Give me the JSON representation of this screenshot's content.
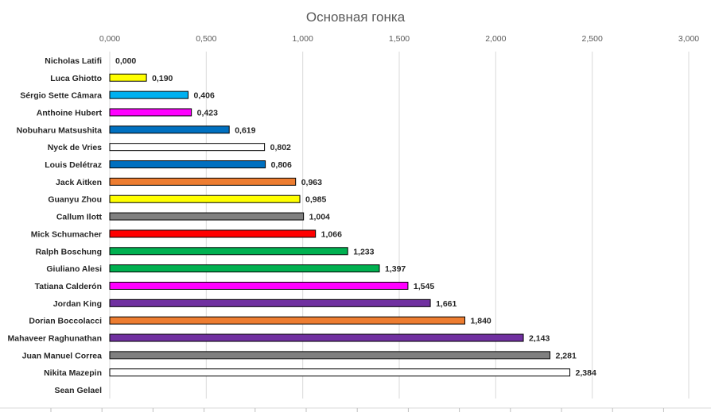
{
  "chart_data": {
    "type": "bar",
    "orientation": "horizontal",
    "title": "Основная гонка",
    "xlim": [
      0,
      3
    ],
    "ticks": [
      "0,000",
      "0,500",
      "1,000",
      "1,500",
      "2,000",
      "2,500",
      "3,000"
    ],
    "grid": true,
    "categories": [
      "Nicholas Latifi",
      "Luca Ghiotto",
      "Sérgio Sette Câmara",
      "Anthoine Hubert",
      "Nobuharu Matsushita",
      "Nyck de Vries",
      "Louis Delétraz",
      "Jack Aitken",
      "Guanyu Zhou",
      "Callum Ilott",
      "Mick Schumacher",
      "Ralph Boschung",
      "Giuliano Alesi",
      "Tatiana Calderón",
      "Jordan King",
      "Dorian Boccolacci",
      "Mahaveer Raghunathan",
      "Juan Manuel Correa",
      "Nikita Mazepin",
      "Sean Gelael"
    ],
    "values": [
      0.0,
      0.19,
      0.406,
      0.423,
      0.619,
      0.802,
      0.806,
      0.963,
      0.985,
      1.004,
      1.066,
      1.233,
      1.397,
      1.545,
      1.661,
      1.84,
      2.143,
      2.281,
      2.384,
      null
    ],
    "labels": [
      "0,000",
      "0,190",
      "0,406",
      "0,423",
      "0,619",
      "0,802",
      "0,806",
      "0,963",
      "0,985",
      "1,004",
      "1,066",
      "1,233",
      "1,397",
      "1,545",
      "1,661",
      "1,840",
      "2,143",
      "2,281",
      "2,384",
      ""
    ],
    "colors": [
      "#ffffff",
      "#ffff00",
      "#00b0f0",
      "#ff00ff",
      "#0070c0",
      "#ffffff",
      "#0070c0",
      "#ed7d31",
      "#ffff00",
      "#808080",
      "#ff0000",
      "#00b050",
      "#00b050",
      "#ff00ff",
      "#7030a0",
      "#ed7d31",
      "#7030a0",
      "#808080",
      "#ffffff",
      "#ffffff"
    ]
  }
}
